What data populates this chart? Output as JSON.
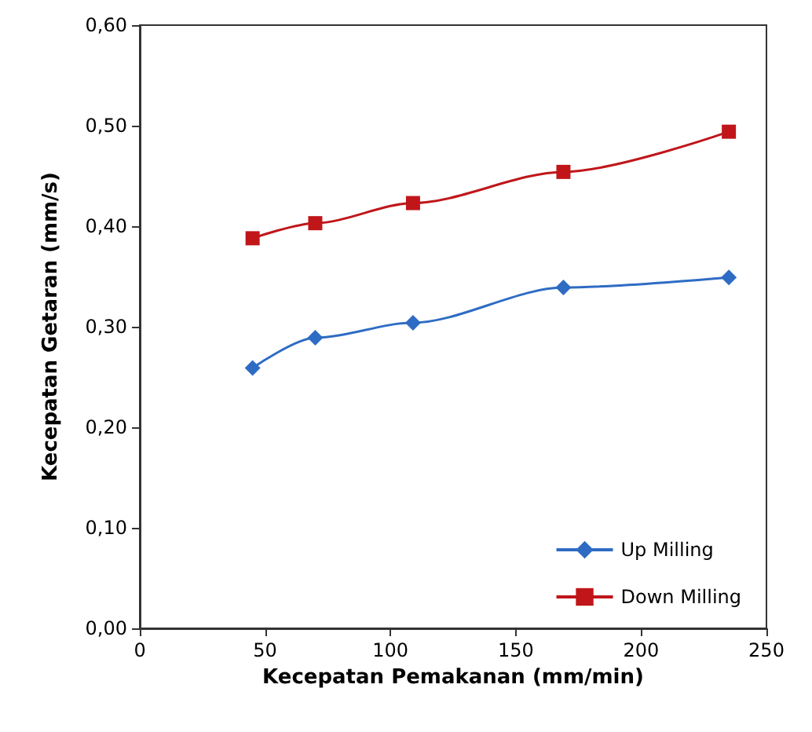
{
  "chart_data": {
    "type": "line",
    "xlabel": "Kecepatan Pemakanan (mm/min)",
    "ylabel": "Kecepatan Getaran (mm/s)",
    "x": [
      45,
      70,
      109,
      169,
      235
    ],
    "series": [
      {
        "name": "Up Milling",
        "color": "#2e6cc4",
        "marker": "diamond",
        "values": [
          0.259,
          0.289,
          0.304,
          0.339,
          0.349
        ]
      },
      {
        "name": "Down Milling",
        "color": "#c0161a",
        "marker": "square",
        "values": [
          0.388,
          0.403,
          0.423,
          0.454,
          0.494
        ]
      }
    ],
    "xlim": [
      0,
      250
    ],
    "xticks": [
      0,
      50,
      100,
      150,
      200,
      250
    ],
    "ylim": [
      0,
      0.6
    ],
    "yticks": [
      {
        "value": 0,
        "label": "0,00"
      },
      {
        "value": 0.1,
        "label": "0,10"
      },
      {
        "value": 0.2,
        "label": "0,20"
      },
      {
        "value": 0.3,
        "label": "0,30"
      },
      {
        "value": 0.4,
        "label": "0,40"
      },
      {
        "value": 0.5,
        "label": "0,50"
      },
      {
        "value": 0.6,
        "label": "0,60"
      }
    ],
    "grid": false,
    "legend": "bottom right",
    "line_style": "solid"
  }
}
